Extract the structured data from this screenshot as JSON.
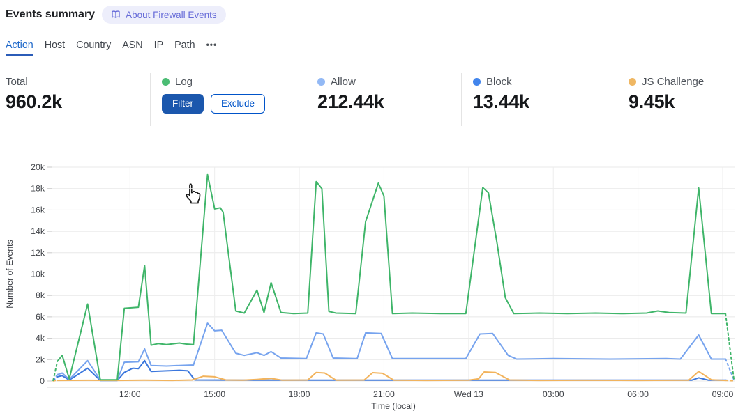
{
  "header": {
    "title": "Events summary",
    "about_badge": "About Firewall Events"
  },
  "tabs": {
    "items": [
      "Action",
      "Host",
      "Country",
      "ASN",
      "IP",
      "Path"
    ],
    "active": "Action",
    "more_label": "•••"
  },
  "stats": {
    "total": {
      "label": "Total",
      "value": "960.2k"
    },
    "items": [
      {
        "label": "Log",
        "dot_color": "#4bbd74",
        "hovered": true,
        "filter_label": "Filter",
        "exclude_label": "Exclude"
      },
      {
        "label": "Allow",
        "dot_color": "#93b9f5",
        "value": "212.44k"
      },
      {
        "label": "Block",
        "dot_color": "#4285ec",
        "value": "13.44k"
      },
      {
        "label": "JS Challenge",
        "dot_color": "#efb763",
        "value": "9.45k"
      }
    ]
  },
  "colors": {
    "accent_blue": "#1b66c9",
    "tab_underline": "#2b5cb8",
    "filter_button_bg": "#1b57ad",
    "exclude_button_blue": "#0054c9",
    "badge_bg": "#edeefb",
    "badge_text": "#666bd8",
    "grid_line": "#e8e8e8",
    "grid_line_vertical": "#ededed",
    "axis_line": "#d9d9d9",
    "axis_text": "#3f4247"
  },
  "chart_data": {
    "type": "line",
    "xlabel": "Time (local)",
    "ylabel": "Number of Events",
    "x_domain": [
      9.25,
      33.42
    ],
    "ylim": [
      0,
      20000
    ],
    "values_unit": "thousands",
    "y_tick_labels": [
      "0",
      "2k",
      "4k",
      "6k",
      "8k",
      "10k",
      "12k",
      "14k",
      "16k",
      "18k",
      "20k"
    ],
    "x_ticks": [
      {
        "t": 12,
        "label": "12:00"
      },
      {
        "t": 15,
        "label": "15:00"
      },
      {
        "t": 18,
        "label": "18:00"
      },
      {
        "t": 21,
        "label": "21:00"
      },
      {
        "t": 24,
        "label": "Wed 13"
      },
      {
        "t": 27,
        "label": "03:00"
      },
      {
        "t": 30,
        "label": "06:00"
      },
      {
        "t": 33,
        "label": "09:00"
      }
    ],
    "grid": true,
    "legend_position": "stats-row-above",
    "partial_bucket_dashed_ends": true,
    "draw_order": [
      2,
      1,
      3,
      0
    ],
    "series": [
      {
        "name": "Log",
        "color": "#3fb569",
        "points": [
          [
            9.28,
            0.05
          ],
          [
            9.43,
            1.85
          ],
          [
            9.6,
            2.4
          ],
          [
            9.85,
            0.2
          ],
          [
            10.5,
            7.2
          ],
          [
            10.95,
            0.12
          ],
          [
            11.55,
            0.12
          ],
          [
            11.8,
            6.8
          ],
          [
            12.05,
            6.85
          ],
          [
            12.3,
            6.9
          ],
          [
            12.52,
            10.8
          ],
          [
            12.75,
            3.35
          ],
          [
            13.0,
            3.5
          ],
          [
            13.3,
            3.4
          ],
          [
            13.75,
            3.55
          ],
          [
            14.0,
            3.45
          ],
          [
            14.25,
            3.4
          ],
          [
            14.75,
            19.3
          ],
          [
            15.0,
            16.1
          ],
          [
            15.2,
            16.2
          ],
          [
            15.3,
            15.8
          ],
          [
            15.75,
            6.55
          ],
          [
            16.05,
            6.35
          ],
          [
            16.5,
            8.5
          ],
          [
            16.75,
            6.4
          ],
          [
            17.0,
            9.2
          ],
          [
            17.35,
            6.4
          ],
          [
            17.8,
            6.3
          ],
          [
            18.3,
            6.35
          ],
          [
            18.6,
            18.65
          ],
          [
            18.8,
            18.0
          ],
          [
            19.05,
            6.5
          ],
          [
            19.3,
            6.35
          ],
          [
            20.0,
            6.3
          ],
          [
            20.35,
            14.9
          ],
          [
            20.8,
            18.5
          ],
          [
            21.0,
            17.3
          ],
          [
            21.3,
            6.3
          ],
          [
            22.0,
            6.35
          ],
          [
            23.0,
            6.3
          ],
          [
            23.9,
            6.3
          ],
          [
            24.5,
            18.1
          ],
          [
            24.7,
            17.6
          ],
          [
            25.0,
            13.0
          ],
          [
            25.3,
            7.8
          ],
          [
            25.6,
            6.3
          ],
          [
            26.5,
            6.35
          ],
          [
            27.5,
            6.3
          ],
          [
            28.5,
            6.35
          ],
          [
            29.5,
            6.3
          ],
          [
            30.3,
            6.35
          ],
          [
            30.7,
            6.55
          ],
          [
            31.1,
            6.4
          ],
          [
            31.7,
            6.35
          ],
          [
            32.15,
            18.05
          ],
          [
            32.6,
            6.3
          ],
          [
            33.1,
            6.3
          ],
          [
            33.4,
            0.1
          ]
        ]
      },
      {
        "name": "Allow",
        "color": "#76a3ee",
        "points": [
          [
            9.28,
            0.1
          ],
          [
            9.43,
            0.6
          ],
          [
            9.6,
            0.75
          ],
          [
            9.85,
            0.15
          ],
          [
            10.5,
            1.9
          ],
          [
            10.95,
            0.1
          ],
          [
            11.55,
            0.1
          ],
          [
            11.8,
            1.75
          ],
          [
            12.3,
            1.8
          ],
          [
            12.52,
            3.0
          ],
          [
            12.75,
            1.45
          ],
          [
            13.3,
            1.4
          ],
          [
            13.75,
            1.45
          ],
          [
            14.25,
            1.5
          ],
          [
            14.75,
            5.4
          ],
          [
            15.0,
            4.7
          ],
          [
            15.25,
            4.75
          ],
          [
            15.75,
            2.6
          ],
          [
            16.05,
            2.4
          ],
          [
            16.5,
            2.65
          ],
          [
            16.75,
            2.4
          ],
          [
            17.0,
            2.75
          ],
          [
            17.35,
            2.15
          ],
          [
            18.25,
            2.1
          ],
          [
            18.6,
            4.5
          ],
          [
            18.85,
            4.4
          ],
          [
            19.2,
            2.15
          ],
          [
            20.05,
            2.1
          ],
          [
            20.35,
            4.5
          ],
          [
            20.9,
            4.45
          ],
          [
            21.3,
            2.1
          ],
          [
            22.5,
            2.1
          ],
          [
            23.9,
            2.1
          ],
          [
            24.4,
            4.4
          ],
          [
            24.85,
            4.45
          ],
          [
            25.4,
            2.4
          ],
          [
            25.7,
            2.05
          ],
          [
            27.0,
            2.1
          ],
          [
            29.0,
            2.05
          ],
          [
            31.0,
            2.1
          ],
          [
            31.5,
            2.05
          ],
          [
            32.15,
            4.3
          ],
          [
            32.6,
            2.05
          ],
          [
            33.1,
            2.05
          ],
          [
            33.4,
            0.1
          ]
        ]
      },
      {
        "name": "Block",
        "color": "#3b77dd",
        "points": [
          [
            9.28,
            0.05
          ],
          [
            9.43,
            0.4
          ],
          [
            9.6,
            0.5
          ],
          [
            9.85,
            0.1
          ],
          [
            10.5,
            1.2
          ],
          [
            10.95,
            0.05
          ],
          [
            11.55,
            0.05
          ],
          [
            11.8,
            0.8
          ],
          [
            12.1,
            1.2
          ],
          [
            12.3,
            1.15
          ],
          [
            12.52,
            1.9
          ],
          [
            12.75,
            0.9
          ],
          [
            13.3,
            0.95
          ],
          [
            13.75,
            1.0
          ],
          [
            14.05,
            0.95
          ],
          [
            14.3,
            0.1
          ],
          [
            16.0,
            0.08
          ],
          [
            18.0,
            0.08
          ],
          [
            20.0,
            0.08
          ],
          [
            22.0,
            0.08
          ],
          [
            24.0,
            0.08
          ],
          [
            26.0,
            0.08
          ],
          [
            28.0,
            0.08
          ],
          [
            30.0,
            0.08
          ],
          [
            31.9,
            0.08
          ],
          [
            32.15,
            0.3
          ],
          [
            32.5,
            0.08
          ],
          [
            33.1,
            0.08
          ],
          [
            33.4,
            0.02
          ]
        ]
      },
      {
        "name": "JS Challenge",
        "color": "#f2b35c",
        "points": [
          [
            9.28,
            0.02
          ],
          [
            9.43,
            0.06
          ],
          [
            10.5,
            0.07
          ],
          [
            11.5,
            0.06
          ],
          [
            12.5,
            0.08
          ],
          [
            13.5,
            0.06
          ],
          [
            14.2,
            0.1
          ],
          [
            14.6,
            0.45
          ],
          [
            15.0,
            0.4
          ],
          [
            15.4,
            0.1
          ],
          [
            16.0,
            0.08
          ],
          [
            16.5,
            0.15
          ],
          [
            17.0,
            0.25
          ],
          [
            17.4,
            0.08
          ],
          [
            18.3,
            0.1
          ],
          [
            18.6,
            0.8
          ],
          [
            18.9,
            0.75
          ],
          [
            19.3,
            0.08
          ],
          [
            20.3,
            0.1
          ],
          [
            20.6,
            0.78
          ],
          [
            20.95,
            0.72
          ],
          [
            21.35,
            0.08
          ],
          [
            22.5,
            0.06
          ],
          [
            24.0,
            0.08
          ],
          [
            24.35,
            0.2
          ],
          [
            24.55,
            0.85
          ],
          [
            24.95,
            0.8
          ],
          [
            25.45,
            0.1
          ],
          [
            26.5,
            0.06
          ],
          [
            28.0,
            0.07
          ],
          [
            30.0,
            0.06
          ],
          [
            31.8,
            0.08
          ],
          [
            32.15,
            0.9
          ],
          [
            32.6,
            0.12
          ],
          [
            33.1,
            0.06
          ],
          [
            33.4,
            0.02
          ]
        ]
      }
    ]
  }
}
